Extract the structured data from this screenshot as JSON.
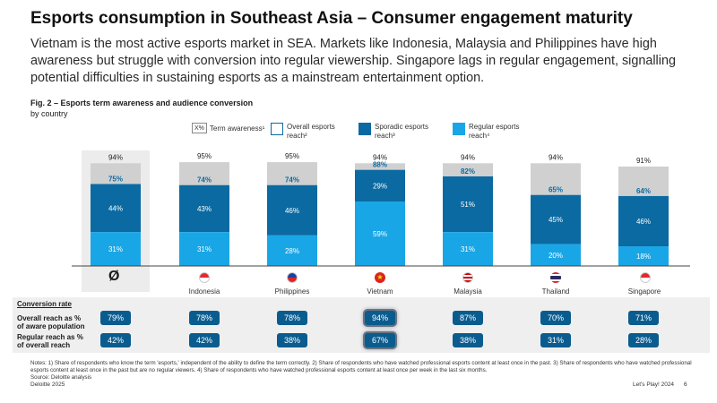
{
  "header": {
    "title": "Esports consumption in Southeast Asia – Consumer engagement maturity",
    "subtitle": "Vietnam is the most active esports market in SEA. Markets like Indonesia, Malaysia and Philippines have high awareness but struggle with conversion into regular viewership. Singapore lags in regular engagement, signalling potential difficulties in sustaining esports as a mainstream entertainment option."
  },
  "figure": {
    "title": "Fig. 2 – Esports term awareness and audience conversion",
    "subtitle": "by country"
  },
  "legend": {
    "awareness_marker": "X%",
    "awareness_label": "Term awareness¹",
    "overall_label": "Overall esports reach²",
    "sporadic_label": "Sporadic esports reach³",
    "regular_label": "Regular esports reach⁴"
  },
  "colors": {
    "awareness": "#d0d0d0",
    "sporadic": "#0a6aa1",
    "regular": "#19a6e6",
    "avg_panel": "#ececec",
    "pill": "#0a5c8f"
  },
  "chart_data": {
    "type": "bar",
    "stacked": true,
    "categories": [
      "Ø",
      "Indonesia",
      "Philippines",
      "Vietnam",
      "Malaysia",
      "Thailand",
      "Singapore"
    ],
    "series": [
      {
        "name": "Regular esports reach⁴",
        "values": [
          31,
          31,
          28,
          59,
          31,
          20,
          18
        ]
      },
      {
        "name": "Sporadic esports reach³",
        "values": [
          44,
          43,
          46,
          29,
          51,
          45,
          46
        ]
      }
    ],
    "overall_reach_labels": [
      "75%",
      "74%",
      "74%",
      "88%",
      "82%",
      "65%",
      "64%"
    ],
    "awareness": [
      94,
      95,
      95,
      94,
      94,
      94,
      91
    ],
    "awareness_labels": [
      "94%",
      "95%",
      "95%",
      "94%",
      "94%",
      "94%",
      "91%"
    ],
    "regular_labels": [
      "31%",
      "31%",
      "28%",
      "59%",
      "31%",
      "20%",
      "18%"
    ],
    "sporadic_labels": [
      "44%",
      "43%",
      "46%",
      "29%",
      "51%",
      "45%",
      "46%"
    ],
    "ylim": [
      0,
      100
    ]
  },
  "countries": [
    "Indonesia",
    "Philippines",
    "Vietnam",
    "Malaysia",
    "Thailand",
    "Singapore"
  ],
  "average_symbol": "Ø",
  "conversion": {
    "title": "Conversion rate",
    "row1_label_a": "Overall reach as %",
    "row1_label_b": "of aware population",
    "row2_label_a": "Regular reach as %",
    "row2_label_b": "of overall reach",
    "overall": [
      "79%",
      "78%",
      "78%",
      "94%",
      "87%",
      "70%",
      "71%"
    ],
    "regular": [
      "42%",
      "42%",
      "38%",
      "67%",
      "38%",
      "31%",
      "28%"
    ]
  },
  "notes": {
    "text": "Notes: 1) Share of respondents who know the term 'esports,' independent of the ability to define the term correctly. 2) Share of respondents who have watched professional esports content at least once in the past. 3) Share of respondents who have watched professional esports content at least once in the past but are no regular viewers. 4) Share of respondents who have watched professional esports content at least once per week in the last six months.",
    "source": "Source: Deloitte analysis"
  },
  "footer": {
    "left": "Deloitte 2025",
    "right": "Let's Play! 2024",
    "page": "6"
  }
}
